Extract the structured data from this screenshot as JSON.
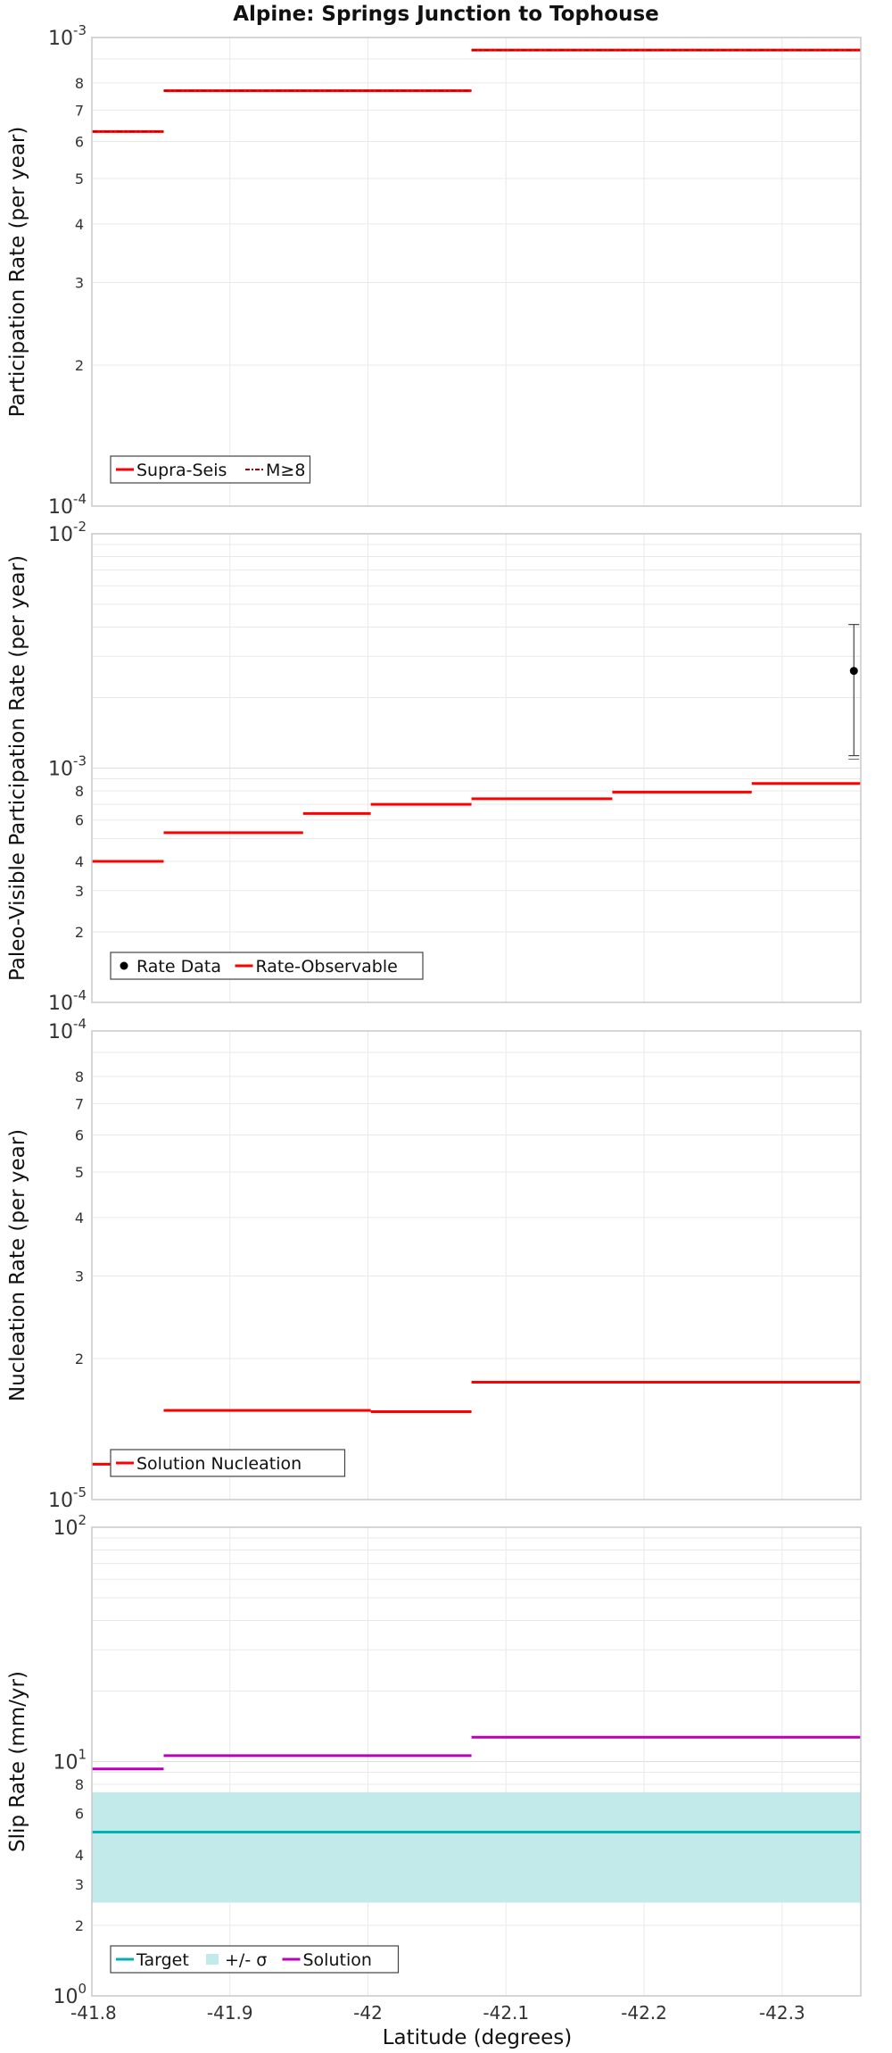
{
  "figure": {
    "title": "Alpine: Springs Junction to Tophouse",
    "xlabel": "Latitude (degrees)",
    "xticks": [
      "-41.8",
      "-41.9",
      "-42",
      "-42.1",
      "-42.2",
      "-42.3"
    ]
  },
  "colors": {
    "red": "#ff0000",
    "purple": "#bb00bb",
    "teal": "#00b3b3",
    "band": "#c3eaea",
    "grid": "#e9e9e9",
    "frame": "#c8c8c8"
  },
  "chart_data": [
    {
      "type": "line",
      "ylabel": "Participation Rate (per year)",
      "yscale": "log",
      "ylim": [
        0.0001,
        0.001
      ],
      "xlim": [
        -41.8,
        -42.357
      ],
      "ytick_major": [
        {
          "base": "10",
          "exp": "-4"
        },
        {
          "base": "10",
          "exp": "-3"
        }
      ],
      "ytick_minor": [
        "2",
        "3",
        "4",
        "5",
        "6",
        "7",
        "8"
      ],
      "legend": [
        "Supra-Seis",
        "M≥8"
      ],
      "series": [
        {
          "name": "Supra-Seis",
          "style": "solid",
          "segments": [
            {
              "x0": -41.8,
              "x1": -41.852,
              "y": 0.00063
            },
            {
              "x0": -41.852,
              "x1": -42.075,
              "y": 0.00077
            },
            {
              "x0": -42.075,
              "x1": -42.357,
              "y": 0.00094
            }
          ]
        },
        {
          "name": "M≥8",
          "style": "dashdot",
          "segments": [
            {
              "x0": -41.8,
              "x1": -41.852,
              "y": 0.00063
            },
            {
              "x0": -41.852,
              "x1": -42.075,
              "y": 0.00077
            },
            {
              "x0": -42.075,
              "x1": -42.357,
              "y": 0.00094
            }
          ]
        }
      ]
    },
    {
      "type": "line",
      "ylabel": "Paleo-Visible Participation Rate (per year)",
      "yscale": "log",
      "ylim": [
        0.0001,
        0.01
      ],
      "xlim": [
        -41.8,
        -42.357
      ],
      "ytick_major": [
        {
          "base": "10",
          "exp": "-4"
        },
        {
          "base": "10",
          "exp": "-3"
        },
        {
          "base": "10",
          "exp": "-2"
        }
      ],
      "ytick_minor": [
        "2",
        "3",
        "4",
        "6",
        "8"
      ],
      "legend": [
        "Rate Data",
        "Rate-Observable"
      ],
      "series": [
        {
          "name": "Rate-Observable",
          "style": "solid",
          "segments": [
            {
              "x0": -41.8,
              "x1": -41.852,
              "y": 0.0004
            },
            {
              "x0": -41.852,
              "x1": -41.953,
              "y": 0.00053
            },
            {
              "x0": -41.953,
              "x1": -42.002,
              "y": 0.00064
            },
            {
              "x0": -42.002,
              "x1": -42.075,
              "y": 0.0007
            },
            {
              "x0": -42.075,
              "x1": -42.177,
              "y": 0.00074
            },
            {
              "x0": -42.177,
              "x1": -42.278,
              "y": 0.00079
            },
            {
              "x0": -42.278,
              "x1": -42.357,
              "y": 0.00086
            }
          ]
        }
      ],
      "points": [
        {
          "name": "Rate Data",
          "x": -42.352,
          "y": 0.0026,
          "ylow": 0.00113,
          "yhigh": 0.0041
        }
      ]
    },
    {
      "type": "line",
      "ylabel": "Nucleation Rate (per year)",
      "yscale": "log",
      "ylim": [
        1e-05,
        0.0001
      ],
      "xlim": [
        -41.8,
        -42.357
      ],
      "ytick_major": [
        {
          "base": "10",
          "exp": "-5"
        },
        {
          "base": "10",
          "exp": "-4"
        }
      ],
      "ytick_minor": [
        "2",
        "3",
        "4",
        "5",
        "6",
        "7",
        "8"
      ],
      "legend": [
        "Solution Nucleation"
      ],
      "series": [
        {
          "name": "Solution Nucleation",
          "style": "solid",
          "segments": [
            {
              "x0": -41.8,
              "x1": -41.852,
              "y": 1.19e-05
            },
            {
              "x0": -41.852,
              "x1": -42.002,
              "y": 1.55e-05
            },
            {
              "x0": -42.002,
              "x1": -42.075,
              "y": 1.54e-05
            },
            {
              "x0": -42.075,
              "x1": -42.357,
              "y": 1.78e-05
            }
          ]
        }
      ]
    },
    {
      "type": "line",
      "ylabel": "Slip Rate (mm/yr)",
      "yscale": "log",
      "ylim": [
        1,
        100
      ],
      "xlim": [
        -41.8,
        -42.357
      ],
      "ytick_major": [
        {
          "base": "10",
          "exp": "0"
        },
        {
          "base": "10",
          "exp": "1"
        },
        {
          "base": "10",
          "exp": "2"
        }
      ],
      "ytick_minor": [
        "2",
        "3",
        "4",
        "6",
        "8"
      ],
      "legend": [
        "Target",
        "+/- σ",
        "Solution"
      ],
      "band": {
        "name": "+/- σ",
        "y0": 2.5,
        "y1": 7.4
      },
      "series": [
        {
          "name": "Target",
          "style": "solid",
          "segments": [
            {
              "x0": -41.8,
              "x1": -42.357,
              "y": 5
            }
          ]
        },
        {
          "name": "Solution",
          "style": "solid",
          "segments": [
            {
              "x0": -41.8,
              "x1": -41.852,
              "y": 9.3
            },
            {
              "x0": -41.852,
              "x1": -42.075,
              "y": 10.6
            },
            {
              "x0": -42.075,
              "x1": -42.357,
              "y": 12.7
            }
          ]
        }
      ]
    }
  ]
}
